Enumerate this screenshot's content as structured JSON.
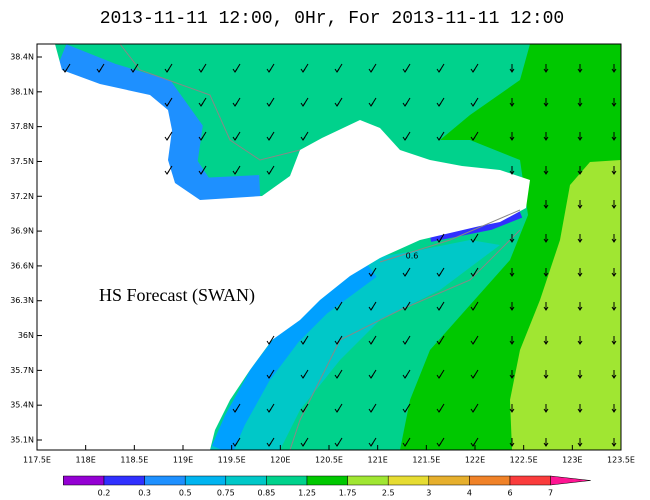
{
  "title": "2013-11-11 12:00, 0Hr, For 2013-11-11 12:00",
  "annotation": "HS Forecast (SWAN)",
  "contour_label": "0.6",
  "x_axis": {
    "labels": [
      "117.5E",
      "118E",
      "118.5E",
      "119E",
      "119.5E",
      "120E",
      "120.5E",
      "121E",
      "121.5E",
      "122E",
      "122.5E",
      "123E",
      "123.5E"
    ]
  },
  "y_axis": {
    "labels": [
      "38.4N",
      "38.1N",
      "37.8N",
      "37.5N",
      "37.2N",
      "36.9N",
      "36.6N",
      "36.3N",
      "36N",
      "35.7N",
      "35.4N",
      "35.1N"
    ]
  },
  "colorbar": {
    "labels": [
      "0.2",
      "0.3",
      "0.5",
      "0.75",
      "0.85",
      "1.25",
      "1.75",
      "2.5",
      "3",
      "4",
      "6",
      "7"
    ]
  }
}
